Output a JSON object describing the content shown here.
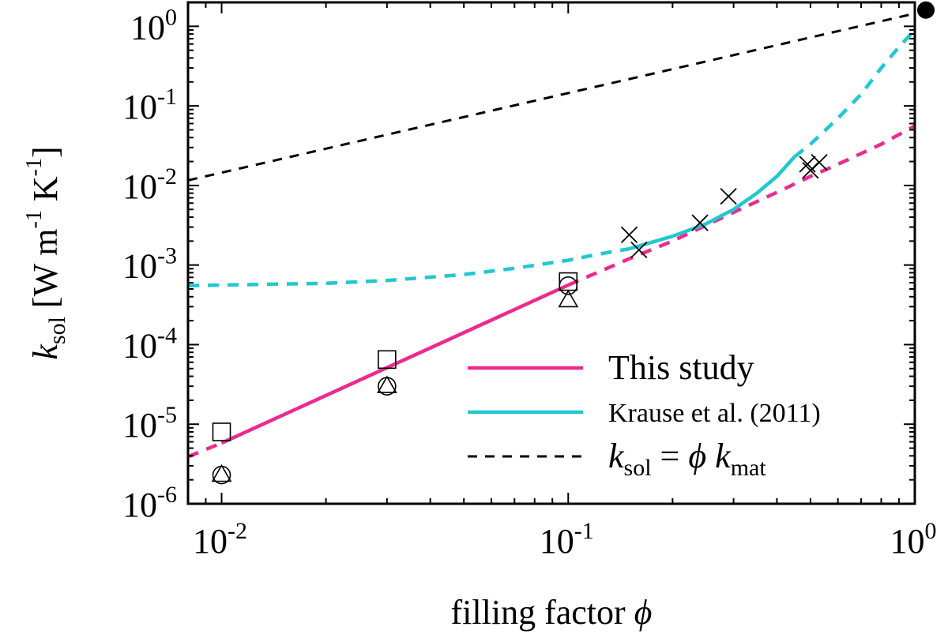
{
  "chart_data": {
    "type": "line",
    "xscale": "log",
    "yscale": "log",
    "xlim": [
      0.008,
      1.0
    ],
    "ylim": [
      1e-06,
      2.0
    ],
    "xlabel": {
      "main": "filling factor ",
      "symbol": "ϕ"
    },
    "ylabel": {
      "k": "k",
      "sub": "sol",
      "rest_a": " [W m",
      "exp1": "-1",
      "rest_b": " K",
      "exp2": "-1",
      "rest_c": "]"
    },
    "xticks": [
      {
        "value": 0.01,
        "base": "10",
        "exp": "-2"
      },
      {
        "value": 0.1,
        "base": "10",
        "exp": "-1"
      },
      {
        "value": 1.0,
        "base": "10",
        "exp": "0"
      }
    ],
    "yticks": [
      {
        "value": 1e-06,
        "base": "10",
        "exp": "-6"
      },
      {
        "value": 1e-05,
        "base": "10",
        "exp": "-5"
      },
      {
        "value": 0.0001,
        "base": "10",
        "exp": "-4"
      },
      {
        "value": 0.001,
        "base": "10",
        "exp": "-3"
      },
      {
        "value": 0.01,
        "base": "10",
        "exp": "-2"
      },
      {
        "value": 0.1,
        "base": "10",
        "exp": "-1"
      },
      {
        "value": 1.0,
        "base": "10",
        "exp": "0"
      }
    ],
    "series": [
      {
        "name": "This study",
        "color": "#ee2a8f",
        "segments": [
          {
            "style": "dashed",
            "x": [
              0.008,
              0.01
            ],
            "y": [
              3.9e-06,
              5.8e-06
            ]
          },
          {
            "style": "solid",
            "x": [
              0.01,
              0.1
            ],
            "y": [
              5.8e-06,
              0.00056
            ]
          },
          {
            "style": "dashed",
            "x": [
              0.1,
              0.15,
              0.2,
              0.3,
              0.4,
              0.5,
              0.6,
              0.8,
              1.0
            ],
            "y": [
              0.00056,
              0.0012,
              0.002,
              0.0046,
              0.0082,
              0.013,
              0.0185,
              0.033,
              0.056
            ]
          }
        ]
      },
      {
        "name": "Krause et al. (2011)",
        "color": "#22c7cf",
        "segments": [
          {
            "style": "dashed",
            "x": [
              0.008,
              0.01,
              0.02,
              0.03,
              0.05,
              0.07,
              0.1,
              0.12,
              0.15
            ],
            "y": [
              0.00055,
              0.00056,
              0.00059,
              0.00064,
              0.00076,
              0.00091,
              0.00115,
              0.00135,
              0.0016
            ]
          },
          {
            "style": "solid",
            "x": [
              0.15,
              0.2,
              0.25,
              0.3,
              0.35,
              0.4,
              0.45
            ],
            "y": [
              0.0016,
              0.0023,
              0.0033,
              0.005,
              0.008,
              0.013,
              0.023
            ]
          },
          {
            "style": "dashed",
            "x": [
              0.45,
              0.5,
              0.6,
              0.7,
              0.8,
              0.9,
              1.0
            ],
            "y": [
              0.023,
              0.033,
              0.07,
              0.14,
              0.3,
              0.55,
              0.9
            ]
          }
        ]
      },
      {
        "name": {
          "k": "k",
          "sub1": "sol",
          "eq": " = ",
          "phi": "ϕ",
          "k2": " k",
          "sub2": "mat"
        },
        "color": "#000000",
        "segments": [
          {
            "style": "dashed",
            "x": [
              0.008,
              1.0
            ],
            "y": [
              0.0116,
              1.45
            ]
          }
        ]
      }
    ],
    "markers": {
      "squares": [
        {
          "x": 0.01,
          "y": 8e-06
        },
        {
          "x": 0.03,
          "y": 6.5e-05
        },
        {
          "x": 0.1,
          "y": 0.00062
        }
      ],
      "circles": [
        {
          "x": 0.01,
          "y": 2.3e-06
        },
        {
          "x": 0.03,
          "y": 3e-05
        },
        {
          "x": 0.1,
          "y": 0.00055
        }
      ],
      "triangles": [
        {
          "x": 0.01,
          "y": 2.3e-06
        },
        {
          "x": 0.03,
          "y": 3e-05
        },
        {
          "x": 0.1,
          "y": 0.00036
        }
      ],
      "crosses": [
        {
          "x": 0.15,
          "y": 0.0024
        },
        {
          "x": 0.16,
          "y": 0.00155
        },
        {
          "x": 0.24,
          "y": 0.0034
        },
        {
          "x": 0.29,
          "y": 0.0073
        },
        {
          "x": 0.49,
          "y": 0.0185
        },
        {
          "x": 0.5,
          "y": 0.0155
        },
        {
          "x": 0.53,
          "y": 0.0195
        }
      ],
      "filled_circle": {
        "x": 1.0,
        "y": 1.6
      }
    },
    "grid": false,
    "legend_position": "lower-right"
  }
}
